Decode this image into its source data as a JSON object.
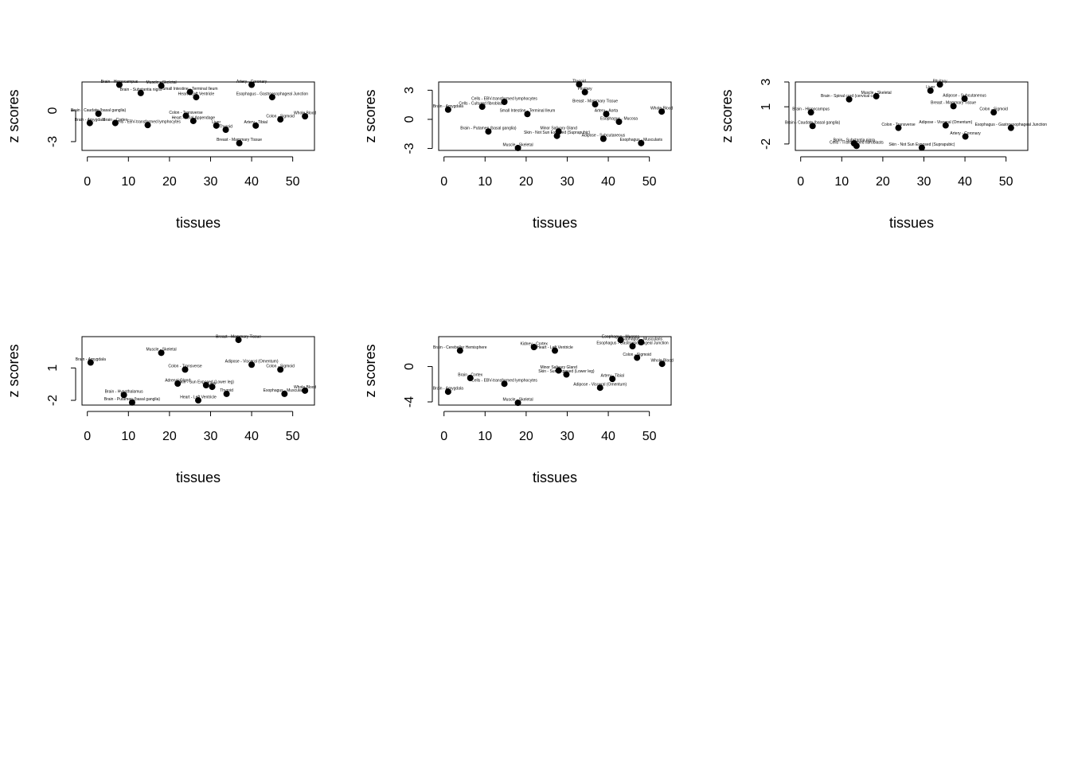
{
  "chart_data": [
    {
      "type": "scatter",
      "xlabel": "tissues",
      "ylabel": "z scores",
      "xlim": [
        -1.3,
        55.3
      ],
      "ylim": [
        -3.85,
        2.77
      ],
      "xticks": [
        0,
        10,
        20,
        30,
        40,
        50
      ],
      "yticks": [
        -3,
        0
      ],
      "x": [
        7.8,
        18,
        40,
        13,
        25,
        45,
        26.5,
        24,
        47,
        41,
        31.4,
        37,
        33.7,
        25.8,
        0.6,
        6.8,
        14.7,
        2.7,
        53
      ],
      "values": [
        2.5,
        2.4,
        2.5,
        1.7,
        1.8,
        1.3,
        1.3,
        -0.5,
        -0.85,
        -1.45,
        -1.45,
        -3.15,
        -1.85,
        -1,
        -1.2,
        -1.2,
        -1.4,
        -0.3,
        -0.55
      ],
      "labels": [
        "Brain - Hippocampus",
        "Muscle - Skeletal",
        "Artery - Coronary",
        "Brain - Substantia nigra",
        "Small Intestine - Terminal Ileum",
        "Esophagus - Gastroesophageal Junction",
        "Heart - Left Ventricle",
        "Colon - Transverse",
        "Colon - Sigmoid",
        "Artery - Tibial",
        "Liver",
        "Breast - Mammary Tissue",
        "Thyroid",
        "Heart - Atrial Appendage",
        "Brain - Amygdala",
        "Brain - Cortex",
        "Cells - EBV-transformed lymphocytes",
        "Brain - Caudate (basal ganglia)",
        "Whole Blood"
      ]
    },
    {
      "type": "scatter",
      "xlabel": "tissues",
      "ylabel": "z scores",
      "xlim": [
        -1.3,
        55.3
      ],
      "ylim": [
        -3.2,
        3.85
      ],
      "xticks": [
        0,
        10,
        20,
        30,
        40,
        50
      ],
      "yticks": [
        -3,
        0,
        3
      ],
      "x": [
        32.9,
        34.3,
        14.7,
        36.8,
        18,
        48,
        53,
        39.5,
        38.8,
        42.6,
        10.8,
        27.9,
        9.3,
        20.3,
        27.5,
        1
      ],
      "values": [
        3.6,
        2.8,
        1.8,
        1.55,
        -2.95,
        -2.45,
        0.8,
        0.55,
        -2,
        -0.25,
        -1.25,
        -1.25,
        1.3,
        0.55,
        -1.7,
        1
      ],
      "labels": [
        "Thyroid",
        "Pituitary",
        "Cells - EBV-transformed lymphocytes",
        "Breast - Mammary Tissue",
        "Muscle - Skeletal",
        "Esophagus - Muscularis",
        "Whole Blood",
        "Artery - Aorta",
        "Adipose - Subcutaneous",
        "Esophagus - Mucosa",
        "Brain - Putamen (basal ganglia)",
        "Minor Salivary Gland",
        "Cells - Cultured fibroblasts",
        "Small Intestine - Terminal Ileum",
        "Skin - Not Sun Exposed (Suprapubic)",
        "Brain - Amygdala"
      ]
    },
    {
      "type": "scatter",
      "xlabel": "tissues",
      "ylabel": "z scores",
      "xlim": [
        -1.3,
        55.3
      ],
      "ylim": [
        -2.52,
        3
      ],
      "xticks": [
        0,
        10,
        20,
        30,
        40,
        50
      ],
      "yticks": [
        -2,
        1,
        3
      ],
      "x": [
        33.9,
        31.6,
        18.4,
        11.8,
        37.2,
        47,
        40.1,
        51.2,
        2.5,
        2.9,
        13,
        13.6,
        29.5,
        23.8,
        35.3,
        39.9
      ],
      "values": [
        2.8,
        2.3,
        1.85,
        1.6,
        1.05,
        0.55,
        -1.4,
        -0.7,
        0.55,
        -0.55,
        -1.95,
        -2.15,
        -2.3,
        -0.7,
        -0.5,
        1.65
      ],
      "labels": [
        "Pituitary",
        "Liver",
        "Muscle - Skeletal",
        "Brain - Spinal cord (cervical c-1)",
        "Breast - Mammary Tissue",
        "Colon - Sigmoid",
        "Artery - Coronary",
        "Esophagus - Gastroesophageal Junction",
        "Brain - Hippocampus",
        "Brain - Caudate (basal ganglia)",
        "Brain - Substantia nigra",
        "Cells - Transformed fibroblasts",
        "Skin - Not Sun Exposed (Suprapubic)",
        "Colon - Transverse",
        "Adipose - Visceral (Omentum)",
        "Adipose - Subcutaneous"
      ]
    },
    {
      "type": "scatter",
      "xlabel": "tissues",
      "ylabel": "z scores",
      "xlim": [
        -1.3,
        55.3
      ],
      "ylim": [
        -2.44,
        3.9
      ],
      "xticks": [
        0,
        10,
        20,
        30,
        40,
        50
      ],
      "yticks": [
        -2,
        1
      ],
      "x": [
        0.8,
        18,
        36.8,
        40,
        28.9,
        23.8,
        47,
        48,
        53,
        27,
        33.9,
        10.9,
        8.9,
        22,
        30.4
      ],
      "values": [
        1.5,
        2.4,
        3.6,
        1.3,
        -0.6,
        0.85,
        0.85,
        -1.4,
        -1.1,
        -2,
        -1.4,
        -2.2,
        -1.5,
        -0.45,
        -0.75
      ],
      "labels": [
        "Brain - Amygdala",
        "Muscle - Skeletal",
        "Breast - Mammary Tissue",
        "Adipose - Visceral (Omentum)",
        "Skin - Sun Exposed (Lower leg)",
        "Colon - Transverse",
        "Colon - Sigmoid",
        "Esophagus - Muscularis",
        "Whole Blood",
        "Heart - Left Ventricle",
        "Thyroid",
        "Brain - Putamen (basal ganglia)",
        "Brain - Hypothalamus",
        "Adrenal Gland",
        "Liver"
      ]
    },
    {
      "type": "scatter",
      "xlabel": "tissues",
      "ylabel": "z scores",
      "xlim": [
        -1.3,
        55.3
      ],
      "ylim": [
        -4.36,
        3.38
      ],
      "xticks": [
        0,
        10,
        20,
        30,
        40,
        50
      ],
      "yticks": [
        -4,
        0
      ],
      "x": [
        18,
        21.9,
        43,
        48,
        45.9,
        47,
        53.1,
        1,
        3.9,
        27,
        14.7,
        29.8,
        38,
        27.9,
        41,
        6.4
      ],
      "values": [
        -4.1,
        2.2,
        3,
        2.75,
        2.3,
        1,
        0.3,
        -2.85,
        1.8,
        1.8,
        -1.95,
        -0.9,
        -2.4,
        -0.45,
        -1.4,
        -1.3
      ],
      "labels": [
        "Muscle - Skeletal",
        "Kidney - Cortex",
        "Esophagus - Mucosa",
        "Esophagus - Muscularis",
        "Esophagus - Gastroesophageal Junction",
        "Colon - Sigmoid",
        "Whole Blood",
        "Brain - Amygdala",
        "Brain - Cerebellar Hemisphere",
        "Heart - Left Ventricle",
        "Cells - EBV-transformed lymphocytes",
        "Skin - Sun Exposed (Lower leg)",
        "Adipose - Visceral (Omentum)",
        "Minor Salivary Gland",
        "Artery - Tibial",
        "Brain - Cortex"
      ]
    }
  ]
}
